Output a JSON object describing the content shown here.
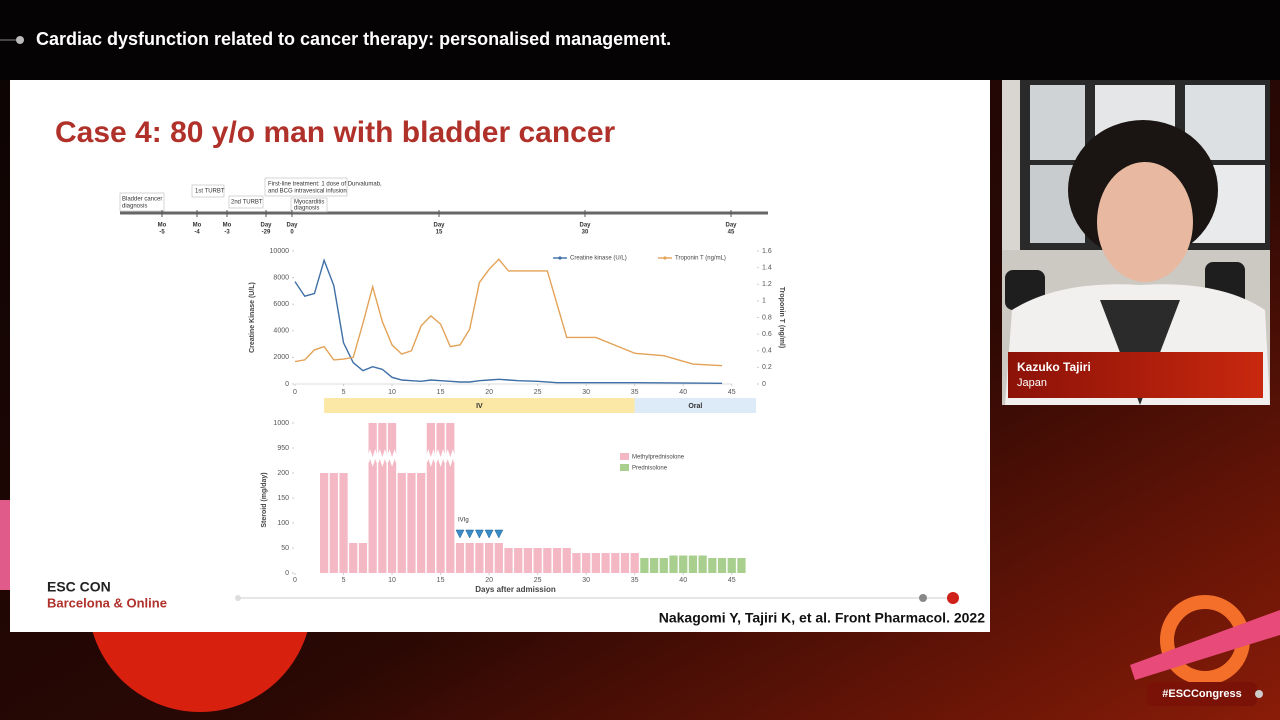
{
  "header": {
    "title": "Cardiac dysfunction related to cancer therapy: personalised management."
  },
  "slide": {
    "title": "Case 4: 80 y/o man with bladder cancer",
    "timeline": {
      "events": [
        [
          "Bladder cancer",
          "diagnosis"
        ],
        [
          "1st TURBT"
        ],
        [
          "2nd TURBT"
        ],
        [
          "First-line treatment: 1 dose of Durvalumab,",
          "and BCG intravesical infusion"
        ],
        [
          "Myocarditis",
          "diagnosis"
        ]
      ],
      "ticks": [
        [
          "Mo",
          "-5"
        ],
        [
          "Mo",
          "-4"
        ],
        [
          "Mo",
          "-3"
        ],
        [
          "Day",
          "-29"
        ],
        [
          "Day",
          "0"
        ],
        [
          "Day",
          "15"
        ],
        [
          "Day",
          "30"
        ],
        [
          "Day",
          "45"
        ]
      ]
    },
    "footer": [
      "ESC CON",
      "Barcelona & Online"
    ],
    "citation": "Nakagomi Y, Tajiri K, et al. Front Pharmacol. 2022"
  },
  "chart_data": [
    {
      "type": "line",
      "ylabel": "Creatine Kinase (U/L)",
      "y2label": "Troponin T (ng/ml)",
      "xlim": [
        0,
        47.5
      ],
      "xticks": [
        0,
        5,
        10,
        15,
        20,
        25,
        30,
        35,
        40,
        45
      ],
      "ylim": [
        0,
        10000
      ],
      "yticks": [
        0,
        2000,
        4000,
        6000,
        8000,
        10000
      ],
      "y2lim": [
        0,
        1.6
      ],
      "y2ticks": [
        0,
        0.2,
        0.4,
        0.6,
        0.8,
        1,
        1.2,
        1.4,
        1.6
      ],
      "series": [
        {
          "name": "Creatine kinase (U/L)",
          "color": "#3f6fa6",
          "x": [
            0,
            1,
            2,
            3,
            4,
            5,
            6,
            7,
            8,
            9,
            10,
            11,
            12,
            13,
            14,
            15,
            16,
            17,
            18,
            19,
            20,
            21,
            22,
            23,
            25,
            27,
            31,
            35,
            39,
            44
          ],
          "values": [
            7700,
            6600,
            6800,
            9300,
            7400,
            3100,
            1600,
            1000,
            1300,
            1100,
            500,
            300,
            250,
            200,
            300,
            250,
            200,
            150,
            150,
            250,
            300,
            350,
            300,
            250,
            200,
            100,
            100,
            100,
            80,
            50
          ]
        },
        {
          "name": "Troponin T (ng/mL)",
          "color": "#e3a257",
          "axis": "y2",
          "x": [
            0,
            1,
            2,
            3,
            4,
            5,
            6,
            7,
            8,
            9,
            10,
            11,
            12,
            13,
            14,
            15,
            16,
            17,
            18,
            19,
            20,
            21,
            22,
            24,
            26,
            28,
            31,
            35,
            38,
            41,
            44
          ],
          "values": [
            0.27,
            0.29,
            0.41,
            0.45,
            0.29,
            0.3,
            0.32,
            0.73,
            1.17,
            0.75,
            0.47,
            0.36,
            0.4,
            0.7,
            0.82,
            0.72,
            0.45,
            0.47,
            0.66,
            1.22,
            1.38,
            1.5,
            1.36,
            1.36,
            1.36,
            0.56,
            0.56,
            0.37,
            0.34,
            0.24,
            0.22
          ]
        }
      ],
      "phases": [
        {
          "label": "IV",
          "start": 3,
          "end": 35,
          "color": "#fbe7a6"
        },
        {
          "label": "Oral",
          "start": 35,
          "end": 47.5,
          "color": "#dcebf7"
        }
      ]
    },
    {
      "type": "bar",
      "xlabel": "Days after admission",
      "ylabel": "Steroid (mg/day)",
      "xlim": [
        0,
        47.5
      ],
      "xticks": [
        0,
        5,
        10,
        15,
        20,
        25,
        30,
        35,
        40,
        45
      ],
      "ylim": [
        0,
        1000
      ],
      "ybreak": [
        250,
        950
      ],
      "yticks": [
        0,
        50,
        100,
        150,
        200,
        950,
        1000
      ],
      "series": [
        {
          "name": "Methylprednisolone",
          "color": "#f4b8c4",
          "x": [
            3,
            4,
            5,
            6,
            7,
            8,
            9,
            10,
            11,
            12,
            13,
            14,
            15,
            16,
            17,
            18,
            19,
            20,
            21,
            22,
            23,
            24,
            25,
            26,
            27,
            28,
            29,
            30,
            31,
            32,
            33,
            34,
            35
          ],
          "values": [
            200,
            200,
            200,
            60,
            60,
            1000,
            1000,
            1000,
            200,
            200,
            200,
            1000,
            1000,
            1000,
            60,
            60,
            60,
            60,
            60,
            50,
            50,
            50,
            50,
            50,
            50,
            50,
            40,
            40,
            40,
            40,
            40,
            40,
            40
          ]
        },
        {
          "name": "Prednisolone",
          "color": "#a8cf8e",
          "x": [
            36,
            37,
            38,
            39,
            40,
            41,
            42,
            43,
            44,
            45,
            46
          ],
          "values": [
            30,
            30,
            30,
            35,
            35,
            35,
            35,
            30,
            30,
            30,
            30
          ]
        }
      ],
      "annotation": {
        "text": "IVIg",
        "x": [
          17,
          18,
          19,
          20,
          21
        ]
      }
    }
  ],
  "speaker": {
    "name": "Kazuko Tajiri",
    "country": "Japan"
  },
  "hashtag": "#ESCCongress"
}
